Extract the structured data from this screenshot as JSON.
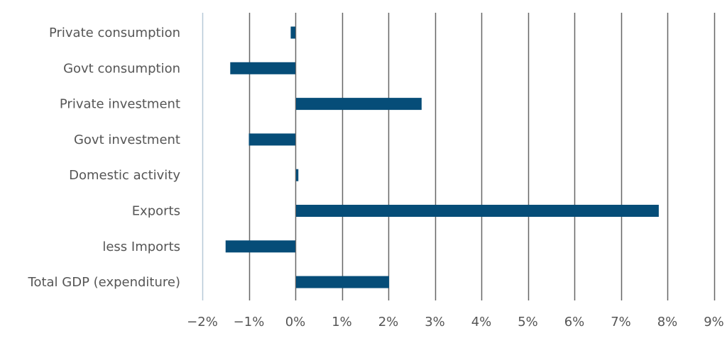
{
  "chart_data": {
    "type": "bar",
    "orientation": "horizontal",
    "categories": [
      "Private consumption",
      "Govt consumption",
      "Private investment",
      "Govt investment",
      "Domestic activity",
      "Exports",
      "less Imports",
      "Total GDP (expenditure)"
    ],
    "values": [
      -0.1,
      -1.4,
      2.7,
      -1.0,
      0.05,
      7.8,
      -1.5,
      2.0
    ],
    "unit": "%",
    "xlim": [
      -2,
      9
    ],
    "x_ticks": [
      -2,
      -1,
      0,
      1,
      2,
      3,
      4,
      5,
      6,
      7,
      8,
      9
    ],
    "x_tick_labels": [
      "−2%",
      "−1%",
      "0%",
      "1%",
      "2%",
      "3%",
      "4%",
      "5%",
      "6%",
      "7%",
      "8%",
      "9%"
    ],
    "grid": "vertical",
    "legend": "none",
    "bar_color": "#064d78",
    "grid_color": "#666666",
    "baseline_color": "#b7c9d8"
  }
}
